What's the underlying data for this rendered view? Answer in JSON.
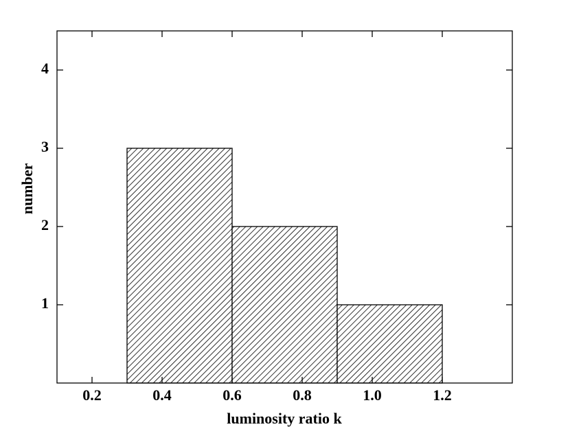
{
  "chart_data": {
    "type": "histogram",
    "xlabel": "luminosity ratio k",
    "ylabel": "number",
    "bins": [
      0.3,
      0.6,
      0.9,
      1.2
    ],
    "counts": [
      3,
      2,
      1
    ],
    "color": "#000000",
    "hatch": "diagonal",
    "xlim": [
      0.1,
      1.4
    ],
    "ylim": [
      0,
      4.5
    ],
    "xticks": [
      0.2,
      0.4,
      0.6,
      0.8,
      {
        "value": 1,
        "label": "1.0"
      },
      1.2
    ],
    "yticks": [
      1,
      2,
      3,
      4
    ],
    "grid": false
  }
}
